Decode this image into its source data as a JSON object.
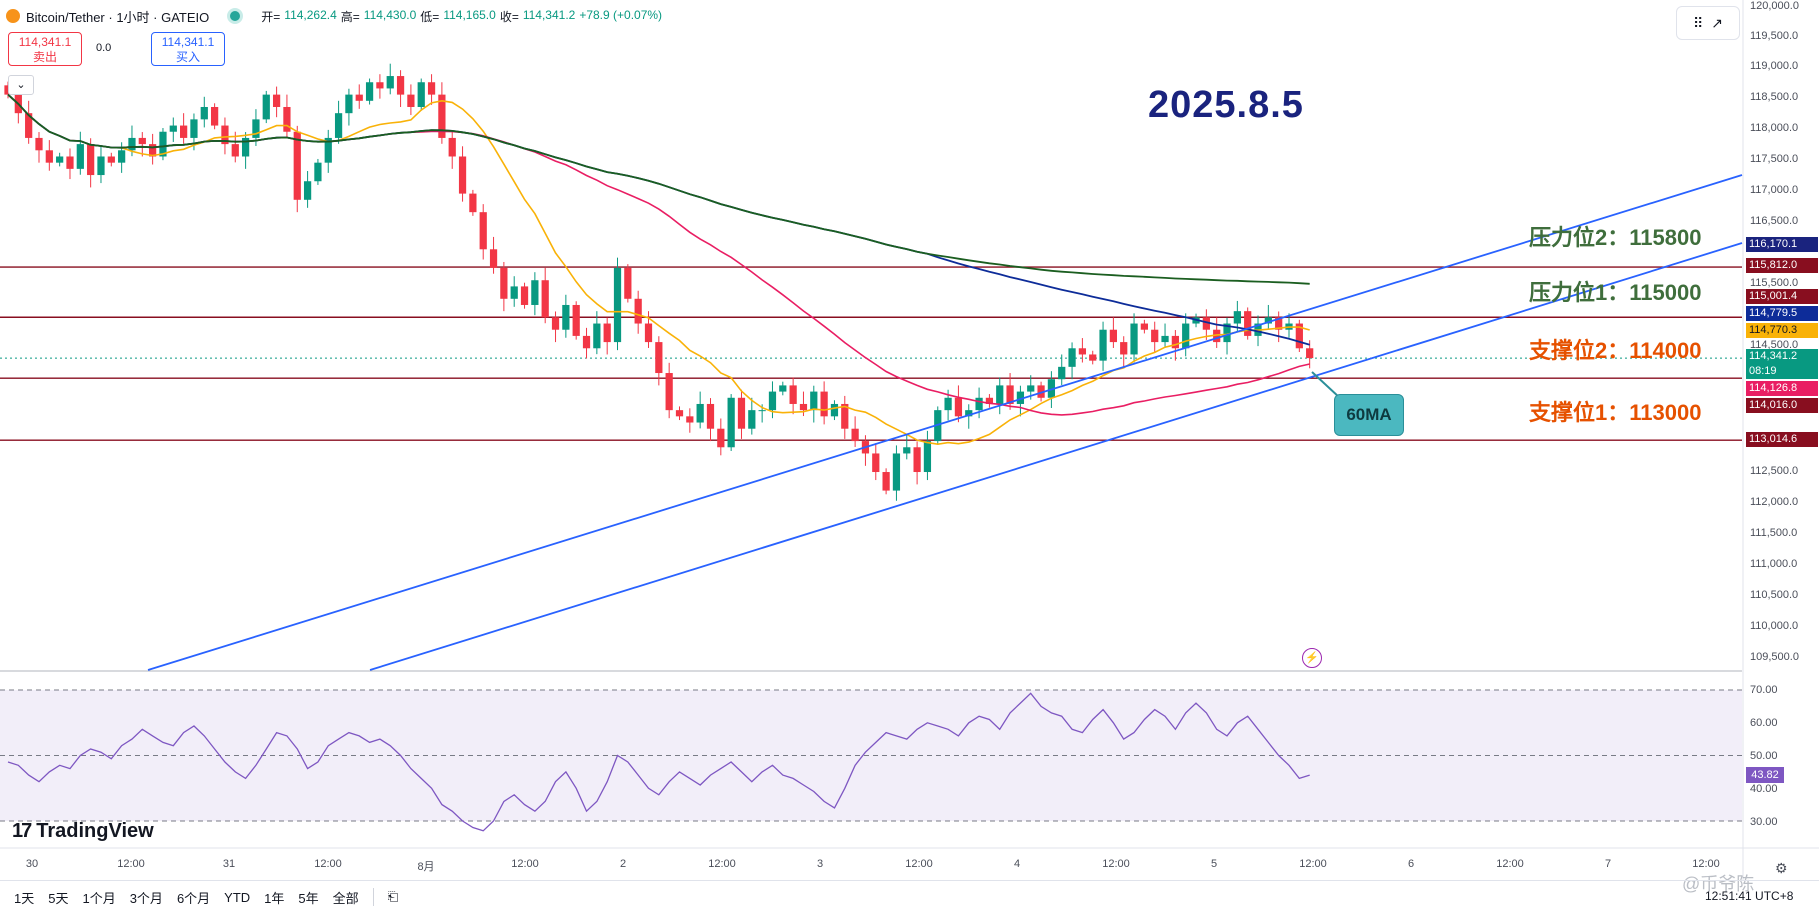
{
  "header": {
    "symbol": "Bitcoin/Tether · 1小时 · GATEIO",
    "open_label": "开=",
    "open": "114,262.4",
    "high_label": "高=",
    "high": "114,430.0",
    "low_label": "低=",
    "low": "114,165.0",
    "close_label": "收=",
    "close": "114,341.2",
    "change": "+78.9 (+0.07%)"
  },
  "trade": {
    "sell_price": "114,341.1",
    "sell_label": "卖出",
    "spread": "0.0",
    "buy_price": "114,341.1",
    "buy_label": "买入",
    "collapse_icon": "chevron-down-icon"
  },
  "annotations": {
    "date_title": "2025.8.5",
    "levels": [
      {
        "text": "压力位2：115800",
        "kind": "resistance"
      },
      {
        "text": "压力位1：115000",
        "kind": "resistance"
      },
      {
        "text": "支撑位2：114000",
        "kind": "support"
      },
      {
        "text": "支撑位1：113000",
        "kind": "support"
      }
    ],
    "ma_callout": "60MA"
  },
  "price_axis": {
    "ticks": [
      "120,000.0",
      "119,500.0",
      "119,000.0",
      "118,500.0",
      "118,000.0",
      "117,500.0",
      "117,000.0",
      "116,500.0",
      "115,500.0",
      "114,500.0",
      "112,500.0",
      "112,000.0",
      "111,500.0",
      "111,000.0",
      "110,500.0",
      "110,000.0",
      "109,500.0"
    ],
    "tags": [
      {
        "text": "116,170.1",
        "color": "#1a237e"
      },
      {
        "text": "115,812.0",
        "color": "#880e1f"
      },
      {
        "text": "115,001.4",
        "color": "#880e1f"
      },
      {
        "text": "114,779.5",
        "color": "#0d2c99"
      },
      {
        "text": "114,770.3",
        "color": "#f9b208"
      },
      {
        "text": "114,341.2",
        "sub": "08:19",
        "color": "#089981"
      },
      {
        "text": "114,126.8",
        "color": "#e91e63"
      },
      {
        "text": "114,016.0",
        "color": "#880e1f"
      },
      {
        "text": "113,014.6",
        "color": "#880e1f"
      }
    ]
  },
  "rsi_axis": {
    "ticks": [
      "70.00",
      "60.00",
      "50.00",
      "40.00",
      "30.00"
    ],
    "value": "43.82"
  },
  "time_axis": [
    "30",
    "12:00",
    "31",
    "12:00",
    "8月",
    "12:00",
    "2",
    "12:00",
    "3",
    "12:00",
    "4",
    "12:00",
    "5",
    "12:00",
    "6",
    "12:00",
    "7",
    "12:00"
  ],
  "bottom_bar": {
    "ranges": [
      "1天",
      "5天",
      "1个月",
      "3个月",
      "6个月",
      "YTD",
      "1年",
      "5年",
      "全部"
    ],
    "clock": "12:51:41 UTC+8"
  },
  "branding": {
    "logo": "TradingView",
    "watermark": "@币爷陈"
  },
  "colors": {
    "up": "#089981",
    "down": "#f23645",
    "ma_fast": "#f9b208",
    "ma_60": "#e91e63",
    "ma_blue": "#0d2c99",
    "ma_green": "#1b5e20",
    "trendline": "#2962ff",
    "level_line": "#880e1f",
    "rsi": "#7e57c2"
  },
  "chart_data": {
    "type": "candlestick",
    "symbol": "Bitcoin/Tether",
    "interval": "1小时",
    "exchange": "GATEIO",
    "ylim": [
      109300,
      120000
    ],
    "horizontal_levels": [
      115812.0,
      115001.4,
      114016.0,
      113014.6
    ],
    "candles_close": [
      118600,
      118300,
      117900,
      117700,
      117500,
      117600,
      117400,
      117800,
      117300,
      117600,
      117500,
      117700,
      117900,
      117800,
      117600,
      118000,
      118100,
      117900,
      118200,
      118400,
      118100,
      117800,
      117600,
      117900,
      118200,
      118600,
      118400,
      118000,
      116900,
      117200,
      117500,
      117900,
      118300,
      118600,
      118500,
      118800,
      118700,
      118900,
      118600,
      118400,
      118800,
      118600,
      117900,
      117600,
      117000,
      116700,
      116100,
      115800,
      115300,
      115500,
      115200,
      115600,
      115000,
      114800,
      115200,
      114700,
      114500,
      114900,
      114600,
      115800,
      115300,
      114900,
      114600,
      114100,
      113500,
      113400,
      113300,
      113600,
      113200,
      112900,
      113700,
      113200,
      113500,
      113500,
      113800,
      113900,
      113600,
      113500,
      113800,
      113400,
      113600,
      113200,
      113000,
      112800,
      112500,
      112200,
      112800,
      112900,
      112500,
      113000,
      113500,
      113700,
      113400,
      113500,
      113700,
      113600,
      113900,
      113600,
      113800,
      113900,
      113700,
      114000,
      114200,
      114500,
      114400,
      114300,
      114800,
      114600,
      114400,
      114900,
      114800,
      114600,
      114700,
      114500,
      114900,
      115000,
      114800,
      114600,
      114900,
      115100,
      114700,
      114900,
      115000,
      114800,
      114900,
      114500,
      114341.2
    ],
    "rsi": [
      48,
      47,
      44,
      42,
      45,
      47,
      46,
      50,
      52,
      51,
      49,
      53,
      55,
      58,
      56,
      54,
      53,
      57,
      59,
      56,
      52,
      48,
      45,
      43,
      47,
      52,
      57,
      56,
      52,
      46,
      48,
      53,
      55,
      57,
      56,
      54,
      55,
      53,
      50,
      46,
      43,
      40,
      35,
      33,
      30,
      28,
      27,
      30,
      36,
      38,
      35,
      33,
      36,
      42,
      45,
      40,
      33,
      36,
      42,
      50,
      48,
      44,
      40,
      38,
      42,
      45,
      43,
      41,
      44,
      46,
      48,
      45,
      42,
      45,
      47,
      44,
      43,
      41,
      39,
      36,
      34,
      40,
      47,
      51,
      54,
      57,
      56,
      55,
      58,
      60,
      59,
      58,
      56,
      60,
      62,
      61,
      58,
      63,
      66,
      69,
      65,
      63,
      62,
      58,
      57,
      61,
      64,
      60,
      55,
      57,
      61,
      64,
      62,
      58,
      63,
      66,
      63,
      58,
      56,
      60,
      62,
      58,
      54,
      50,
      47,
      43,
      44
    ]
  }
}
